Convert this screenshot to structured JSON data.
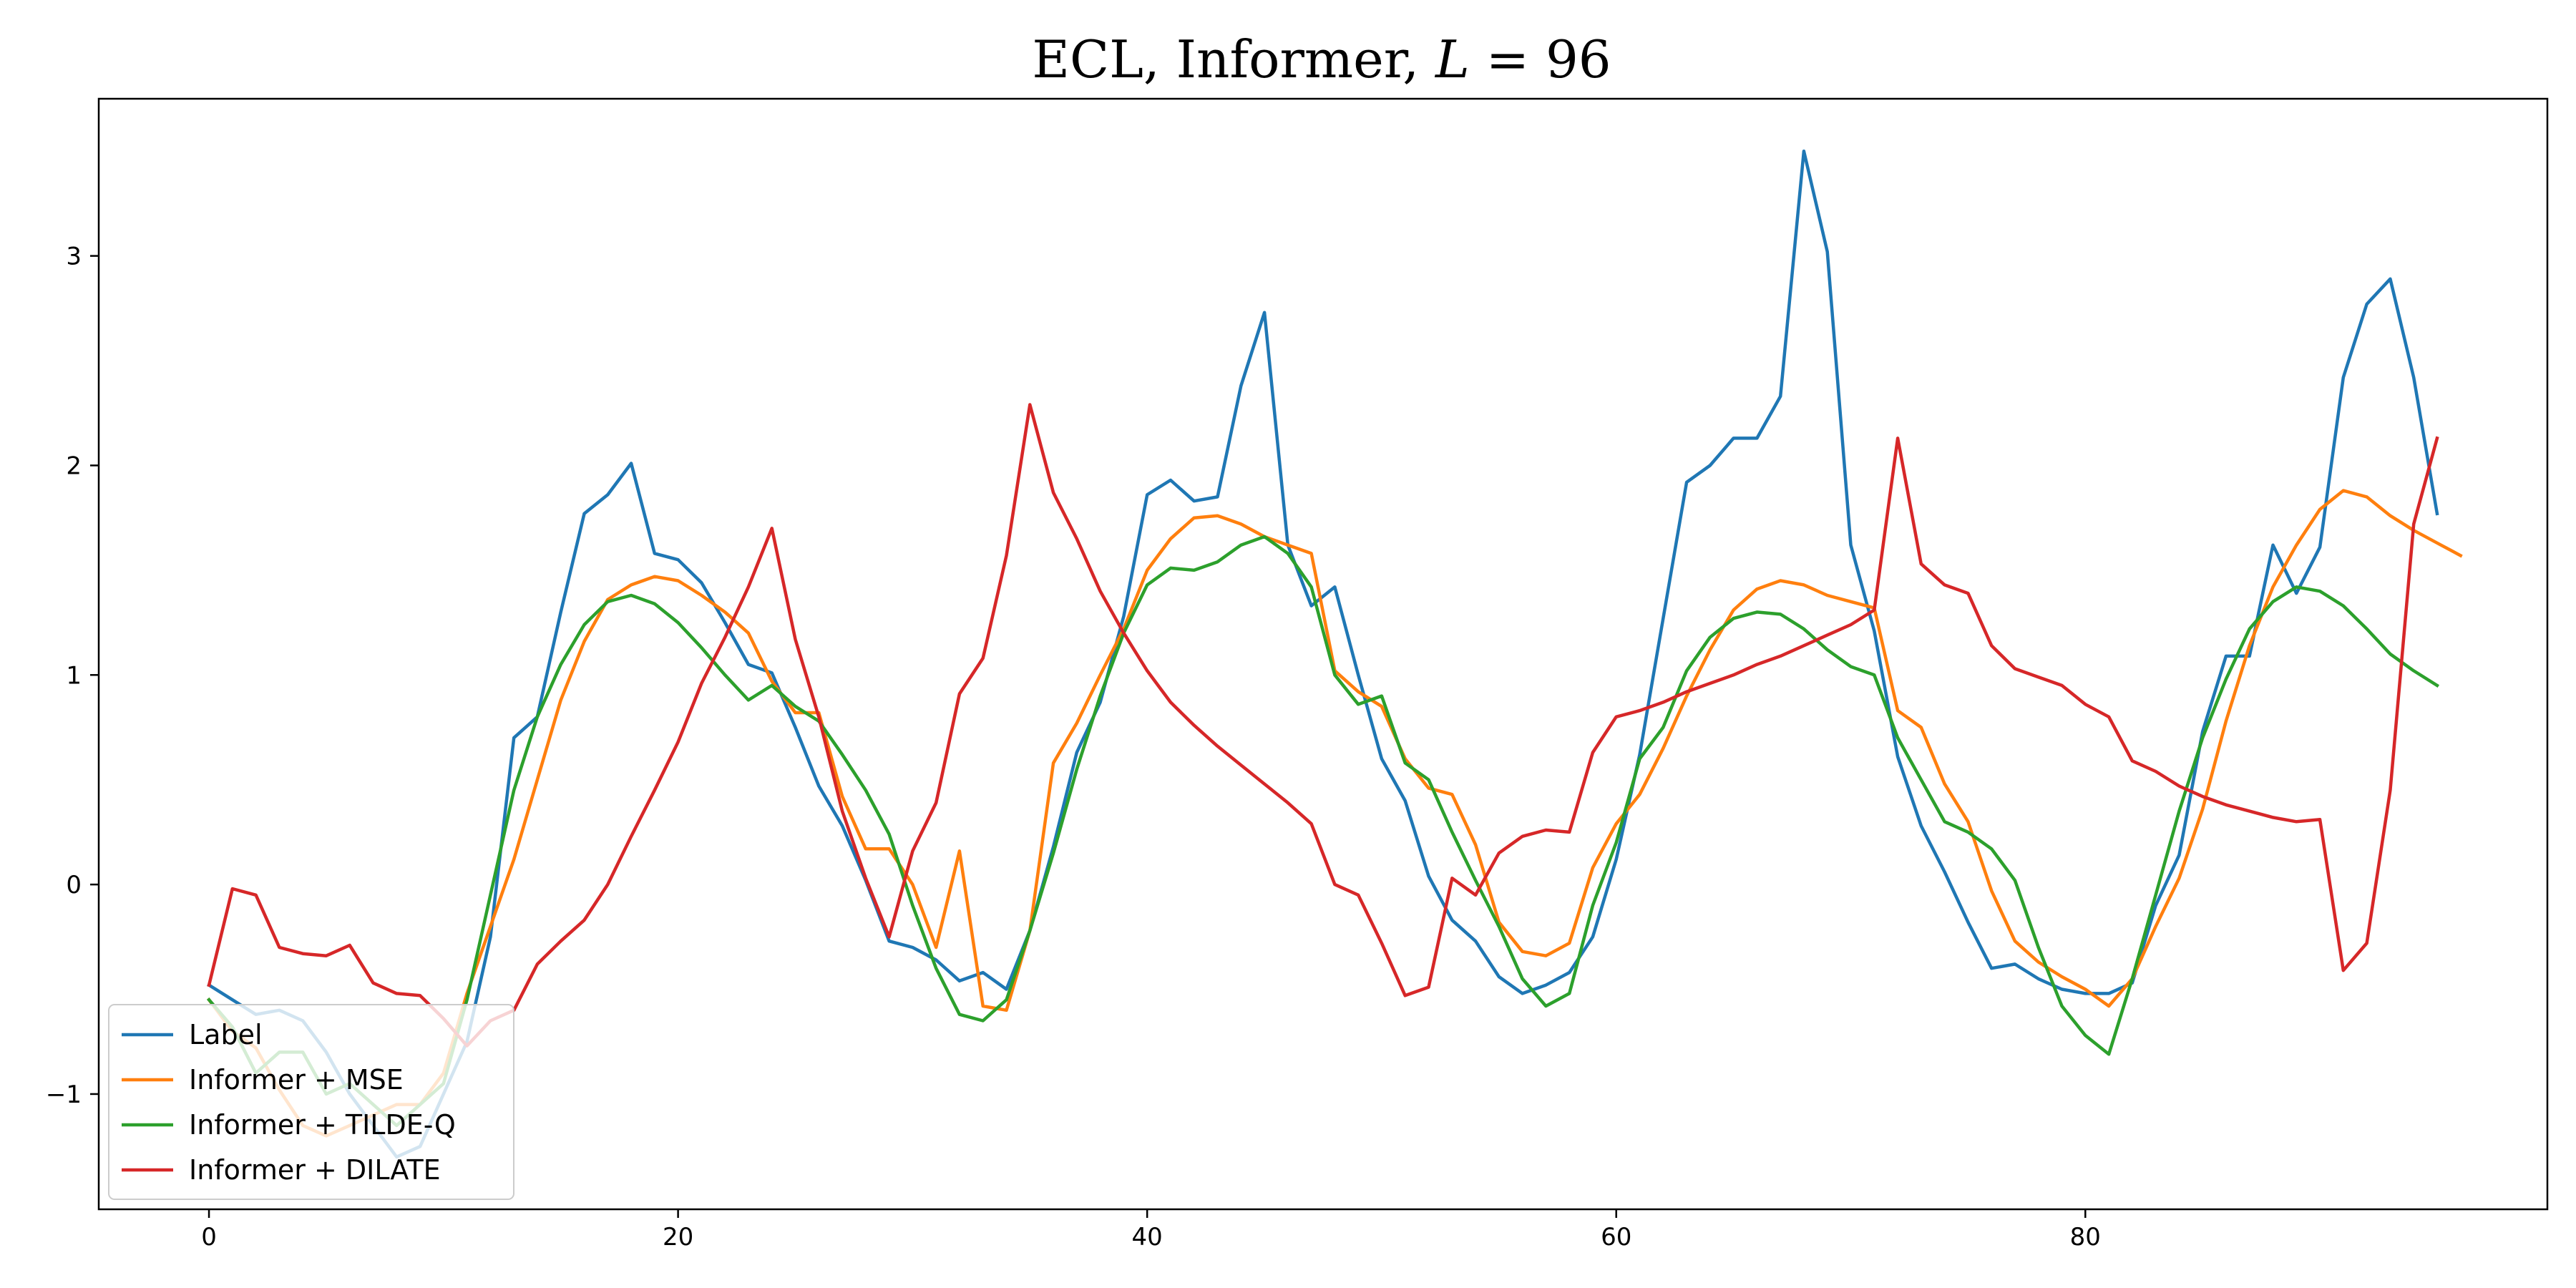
{
  "chart_data": {
    "type": "line",
    "title": "ECL, Informer, L = 96",
    "title_parts": {
      "prefix": "ECL, Informer, ",
      "italic": "L",
      "suffix": " = 96"
    },
    "xlabel": "",
    "ylabel": "",
    "xlim": [
      -4.7,
      99.7
    ],
    "ylim": [
      -1.55,
      3.75
    ],
    "x_ticks": [
      0,
      20,
      40,
      60,
      80
    ],
    "y_ticks": [
      -1,
      0,
      1,
      2,
      3
    ],
    "x_tick_labels": [
      "0",
      "20",
      "40",
      "60",
      "80"
    ],
    "y_tick_labels": [
      "−1",
      "0",
      "1",
      "2",
      "3"
    ],
    "grid": false,
    "legend_position": "lower left",
    "x_start": 0,
    "series": [
      {
        "name": "Label",
        "color": "#1f77b4",
        "values": [
          -0.48,
          -0.55,
          -0.62,
          -0.6,
          -0.65,
          -0.8,
          -1.0,
          -1.15,
          -1.3,
          -1.25,
          -1.0,
          -0.75,
          -0.25,
          0.7,
          0.8,
          1.3,
          1.77,
          1.86,
          2.01,
          1.58,
          1.55,
          1.44,
          1.25,
          1.05,
          1.01,
          0.75,
          0.47,
          0.28,
          0.02,
          -0.27,
          -0.3,
          -0.36,
          -0.46,
          -0.42,
          -0.5,
          -0.22,
          0.18,
          0.63,
          0.87,
          1.28,
          1.86,
          1.93,
          1.83,
          1.85,
          2.38,
          2.73,
          1.62,
          1.33,
          1.42,
          1.0,
          0.6,
          0.4,
          0.04,
          -0.17,
          -0.27,
          -0.44,
          -0.52,
          -0.48,
          -0.42,
          -0.25,
          0.12,
          0.62,
          1.27,
          1.92,
          2.0,
          2.13,
          2.13,
          2.33,
          3.5,
          3.02,
          1.62,
          1.21,
          0.61,
          0.28,
          0.06,
          -0.18,
          -0.4,
          -0.38,
          -0.45,
          -0.5,
          -0.52,
          -0.52,
          -0.47,
          -0.1,
          0.14,
          0.73,
          1.09,
          1.09,
          1.62,
          1.39,
          1.61,
          2.42,
          2.77,
          2.89,
          2.42,
          1.77
        ]
      },
      {
        "name": "Informer + MSE",
        "color": "#ff7f0e",
        "values": [
          -0.55,
          -0.7,
          -0.78,
          -0.98,
          -1.15,
          -1.2,
          -1.15,
          -1.1,
          -1.05,
          -1.05,
          -0.9,
          -0.52,
          -0.2,
          0.12,
          0.5,
          0.88,
          1.16,
          1.36,
          1.43,
          1.47,
          1.45,
          1.38,
          1.3,
          1.2,
          0.97,
          0.82,
          0.82,
          0.42,
          0.17,
          0.17,
          0.0,
          -0.3,
          0.16,
          -0.58,
          -0.6,
          -0.22,
          0.58,
          0.77,
          1.0,
          1.22,
          1.5,
          1.65,
          1.75,
          1.76,
          1.72,
          1.66,
          1.62,
          1.58,
          1.02,
          0.92,
          0.85,
          0.6,
          0.46,
          0.43,
          0.19,
          -0.18,
          -0.32,
          -0.34,
          -0.28,
          0.08,
          0.29,
          0.43,
          0.65,
          0.9,
          1.12,
          1.31,
          1.41,
          1.45,
          1.43,
          1.38,
          1.35,
          1.32,
          0.83,
          0.75,
          0.48,
          0.3,
          -0.03,
          -0.27,
          -0.37,
          -0.44,
          -0.5,
          -0.58,
          -0.45,
          -0.2,
          0.03,
          0.36,
          0.78,
          1.14,
          1.42,
          1.62,
          1.79,
          1.88,
          1.85,
          1.76,
          1.69,
          1.63,
          1.57
        ]
      },
      {
        "name": "Informer + TILDE-Q",
        "color": "#2ca02c",
        "values": [
          -0.55,
          -0.68,
          -0.9,
          -0.8,
          -0.8,
          -1.0,
          -0.95,
          -1.05,
          -1.15,
          -1.05,
          -0.95,
          -0.55,
          -0.05,
          0.45,
          0.8,
          1.05,
          1.24,
          1.35,
          1.38,
          1.34,
          1.25,
          1.13,
          1.0,
          0.88,
          0.95,
          0.85,
          0.78,
          0.62,
          0.45,
          0.24,
          -0.1,
          -0.4,
          -0.62,
          -0.65,
          -0.55,
          -0.22,
          0.15,
          0.55,
          0.9,
          1.2,
          1.43,
          1.51,
          1.5,
          1.54,
          1.62,
          1.66,
          1.58,
          1.42,
          1.0,
          0.86,
          0.9,
          0.58,
          0.5,
          0.25,
          0.02,
          -0.2,
          -0.45,
          -0.58,
          -0.52,
          -0.1,
          0.2,
          0.6,
          0.75,
          1.02,
          1.18,
          1.27,
          1.3,
          1.29,
          1.22,
          1.12,
          1.04,
          1.0,
          0.7,
          0.5,
          0.3,
          0.25,
          0.17,
          0.02,
          -0.3,
          -0.58,
          -0.72,
          -0.81,
          -0.45,
          -0.05,
          0.35,
          0.7,
          0.98,
          1.22,
          1.35,
          1.42,
          1.4,
          1.33,
          1.22,
          1.1,
          1.02,
          0.95
        ]
      },
      {
        "name": "Informer + DILATE",
        "color": "#d62728",
        "values": [
          -0.48,
          -0.02,
          -0.05,
          -0.3,
          -0.33,
          -0.34,
          -0.29,
          -0.47,
          -0.52,
          -0.53,
          -0.64,
          -0.77,
          -0.65,
          -0.6,
          -0.38,
          -0.27,
          -0.17,
          0.0,
          0.23,
          0.45,
          0.68,
          0.96,
          1.18,
          1.42,
          1.7,
          1.17,
          0.8,
          0.35,
          0.03,
          -0.25,
          0.16,
          0.39,
          0.91,
          1.08,
          1.57,
          2.29,
          1.87,
          1.65,
          1.4,
          1.2,
          1.02,
          0.87,
          0.76,
          0.66,
          0.57,
          0.48,
          0.39,
          0.29,
          0.0,
          -0.05,
          -0.28,
          -0.53,
          -0.49,
          0.03,
          -0.05,
          0.15,
          0.23,
          0.26,
          0.25,
          0.63,
          0.8,
          0.83,
          0.87,
          0.92,
          0.96,
          1.0,
          1.05,
          1.09,
          1.14,
          1.19,
          1.24,
          1.31,
          2.13,
          1.53,
          1.43,
          1.39,
          1.14,
          1.03,
          0.99,
          0.95,
          0.86,
          0.8,
          0.59,
          0.54,
          0.47,
          0.42,
          0.38,
          0.35,
          0.32,
          0.3,
          0.31,
          -0.41,
          -0.28,
          0.45,
          1.72,
          2.13
        ]
      }
    ]
  }
}
